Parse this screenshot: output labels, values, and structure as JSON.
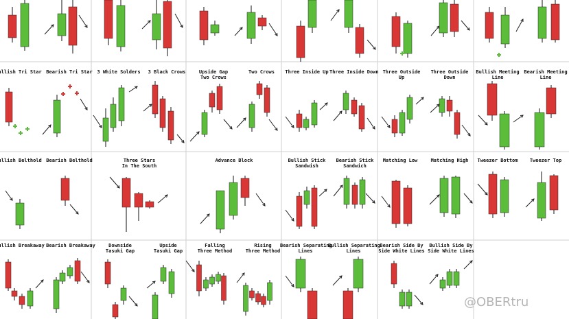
{
  "colors": {
    "bull": "#5bbd3a",
    "bear": "#d93636",
    "grid": "#cfcfcf",
    "arrow": "#222222"
  },
  "patterns": {
    "r1": [
      "Bullish Tri Star",
      "Bearish Tri Star",
      "3 White Solders",
      "3 Black Crows",
      "Upside Gap\nTwo Crows",
      "Two Crows",
      "Three Inside Up",
      "Three Inside Down",
      "Three Outside\nUp",
      "Three Outside\nDown",
      "Bullish Meeting\nLine",
      "Bearish Meeting\nLine"
    ],
    "r2": [
      "Bullish Belthold",
      "Bearish Belthold",
      "Three Stars\nIn The South",
      "Advance Block",
      "Bullish Stick\nSandwish",
      "Bearish Stick\nSandwich",
      "Matching Low",
      "Matching High",
      "Tweezer Bottom",
      "Tweezer Top"
    ],
    "r3": [
      "Bullish Breakaway",
      "Bearish Breakaway",
      "Downside\nTasuki Gap",
      "Upside\nTasuki Gap",
      "Falling\nThree Method",
      "Rising\nThree Method",
      "Bearish Separating\nLines",
      "Bullish Separating\nLines",
      "Bearish Side By\nSide White Lines",
      "Bullish Side By\nSide White Lines"
    ]
  },
  "watermark": "@OBERtru"
}
